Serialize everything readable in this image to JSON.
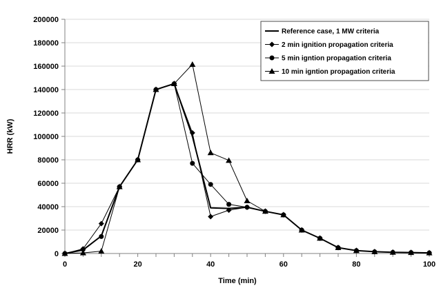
{
  "chart_data": {
    "type": "line",
    "title": "",
    "xlabel": "Time (min)",
    "ylabel": "HRR (kW)",
    "xlim": [
      0,
      100
    ],
    "ylim": [
      0,
      200000
    ],
    "x_ticks": [
      "0",
      "20",
      "40",
      "60",
      "80",
      "100"
    ],
    "y_ticks": [
      "0",
      "20000",
      "40000",
      "60000",
      "80000",
      "100000",
      "120000",
      "140000",
      "160000",
      "180000",
      "200000"
    ],
    "grid": "horizontal",
    "legend_position": "top-right",
    "series": [
      {
        "name": "Reference case, 1 MW criteria",
        "marker": "none",
        "x": [
          0,
          5,
          10,
          15,
          20,
          25,
          30,
          35,
          40,
          45,
          50,
          55,
          60,
          65,
          70,
          75,
          80,
          85,
          90,
          95,
          100
        ],
        "y": [
          0,
          3000,
          15000,
          57000,
          80000,
          140000,
          145000,
          100000,
          39000,
          38500,
          39500,
          36000,
          33000,
          20000,
          13000,
          5000,
          2500,
          1500,
          1000,
          800,
          500
        ]
      },
      {
        "name": "2 min ignition propagation criteria",
        "marker": "diamond",
        "x": [
          0,
          5,
          10,
          15,
          20,
          25,
          30,
          35,
          40,
          45,
          50,
          55,
          60,
          65,
          70,
          75,
          80,
          85,
          90,
          95,
          100
        ],
        "y": [
          0,
          4000,
          25500,
          57000,
          80000,
          140000,
          145000,
          103000,
          31500,
          37000,
          39500,
          36000,
          33000,
          20000,
          13000,
          5000,
          2500,
          1500,
          1000,
          800,
          500
        ]
      },
      {
        "name": "5 min igntion propagation criteria",
        "marker": "circle",
        "x": [
          0,
          5,
          10,
          15,
          20,
          25,
          30,
          35,
          40,
          45,
          50,
          55,
          60,
          65,
          70,
          75,
          80,
          85,
          90,
          95,
          100
        ],
        "y": [
          0,
          3500,
          14500,
          57000,
          80000,
          140000,
          145000,
          77000,
          59000,
          42000,
          39500,
          36000,
          33000,
          20000,
          13000,
          5000,
          2500,
          1500,
          1000,
          800,
          500
        ]
      },
      {
        "name": "10 min igntion propagation criteria",
        "marker": "triangle",
        "x": [
          0,
          5,
          10,
          15,
          20,
          25,
          30,
          35,
          40,
          45,
          50,
          55,
          60,
          65,
          70,
          75,
          80,
          85,
          90,
          95,
          100
        ],
        "y": [
          0,
          500,
          2000,
          57000,
          80000,
          140000,
          145000,
          161500,
          86000,
          79500,
          45000,
          36000,
          33000,
          20000,
          13000,
          5000,
          2500,
          1500,
          1000,
          800,
          500
        ]
      }
    ]
  }
}
